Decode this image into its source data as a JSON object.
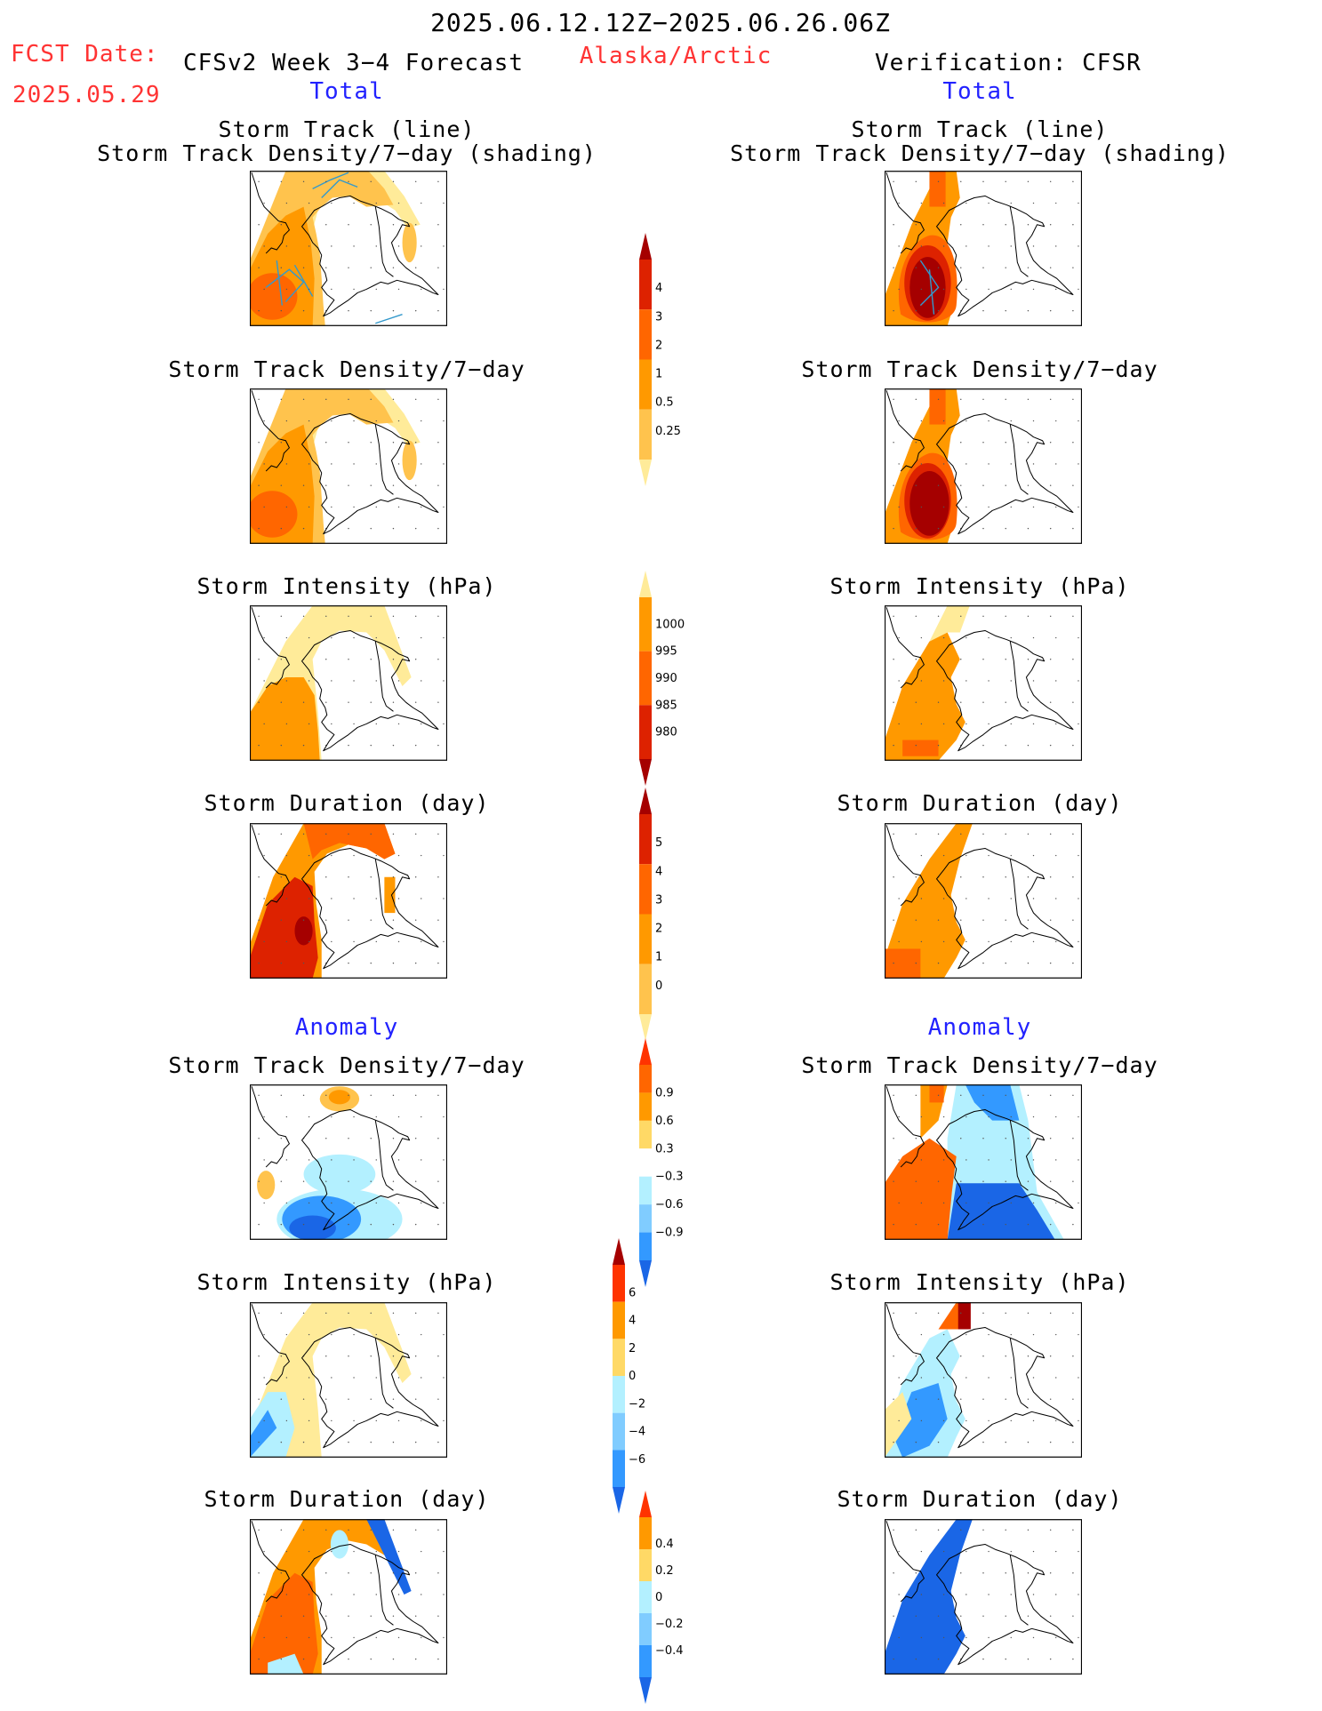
{
  "header": {
    "date_range": "2025.06.12.12Z−2025.06.26.06Z",
    "fcst_label": "FCST Date:",
    "fcst_date": "2025.05.29",
    "model_title": "CFSv2 Week 3−4 Forecast",
    "region": "Alaska/Arctic",
    "verification": "Verification: CFSR",
    "total_left": "Total",
    "total_right": "Total",
    "anomaly_left": "Anomaly",
    "anomaly_right": "Anomaly"
  },
  "panels": {
    "track_line_a": "Storm Track (line)",
    "track_line_b": "Storm Track Density/7−day (shading)",
    "track_density": "Storm Track Density/7−day",
    "intensity": "Storm Intensity (hPa)",
    "duration": "Storm Duration (day)"
  },
  "colorbars": {
    "density_total": {
      "labels": [
        "4",
        "3",
        "2",
        "1",
        "0.5",
        "0.25"
      ],
      "colors": [
        "#a50000",
        "#dd2200",
        "#ff6600",
        "#ff9900",
        "#ffc34d",
        "#ffeb99"
      ]
    },
    "intensity_total": {
      "labels": [
        "1000",
        "995",
        "990",
        "985",
        "980"
      ],
      "colors": [
        "#ffeb99",
        "#ff9900",
        "#ff6600",
        "#dd2200",
        "#a50000"
      ]
    },
    "duration_total": {
      "labels": [
        "5",
        "4",
        "3",
        "2",
        "1",
        "0"
      ],
      "colors": [
        "#a50000",
        "#dd2200",
        "#ff6600",
        "#ff9900",
        "#ffc34d",
        "#ffeb99"
      ]
    },
    "density_anom": {
      "labels": [
        "0.9",
        "0.6",
        "0.3",
        "−0.3",
        "−0.6",
        "−0.9"
      ],
      "colors": [
        "#ff3300",
        "#ff6600",
        "#ff9900",
        "#ffd966",
        "#ffffff",
        "#b3f0ff",
        "#80ccff",
        "#3399ff",
        "#1a66e6"
      ]
    },
    "intensity_anom": {
      "labels": [
        "6",
        "4",
        "2",
        "0",
        "−2",
        "−4",
        "−6"
      ],
      "colors": [
        "#a50000",
        "#ff3300",
        "#ff9900",
        "#ffd966",
        "#b3f0ff",
        "#80ccff",
        "#3399ff",
        "#1a66e6"
      ]
    },
    "duration_anom": {
      "labels": [
        "0.4",
        "0.2",
        "0",
        "−0.2",
        "−0.4"
      ],
      "colors": [
        "#ff3300",
        "#ff9900",
        "#ffd966",
        "#b3f0ff",
        "#80ccff",
        "#3399ff",
        "#1a66e6"
      ]
    }
  },
  "colors": {
    "yellow": "#ffeb99",
    "lightorange": "#ffc34d",
    "orange": "#ff9900",
    "darkorange": "#ff6600",
    "red": "#dd2200",
    "darkred": "#a50000",
    "lightblue": "#b3f0ff",
    "blue": "#3399ff",
    "darkblue": "#1a66e6",
    "track_line": "#3399cc"
  }
}
